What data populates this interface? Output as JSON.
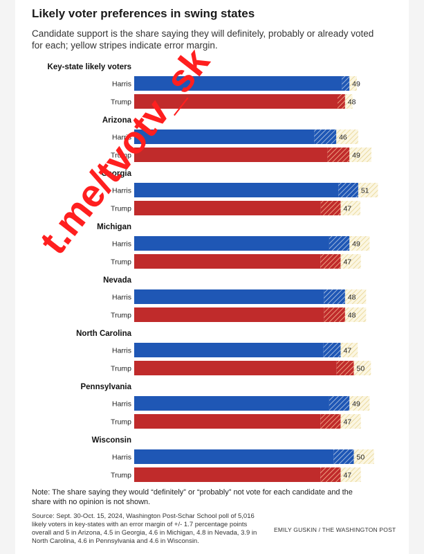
{
  "header": {
    "title": "Likely voter preferences in swing states",
    "subtitle": "Candidate support is the share saying they will definitely, probably or already voted for each; yellow stripes indicate error margin."
  },
  "colors": {
    "harris": "#1f57b5",
    "trump": "#c02b2b",
    "harris_stripe": "#7f9fcc",
    "trump_stripe": "#e07f6a",
    "margin": "#f0e3b0"
  },
  "chart_data": {
    "type": "bar",
    "orientation": "horizontal",
    "xlim": [
      0,
      60
    ],
    "groups": [
      {
        "label": "Key-state likely voters",
        "margin": 1.7,
        "bars": [
          {
            "name": "Harris",
            "value": 49
          },
          {
            "name": "Trump",
            "value": 48
          }
        ]
      },
      {
        "label": "Arizona",
        "margin": 5,
        "bars": [
          {
            "name": "Harris",
            "value": 46
          },
          {
            "name": "Trump",
            "value": 49
          }
        ]
      },
      {
        "label": "Georgia",
        "margin": 4.5,
        "bars": [
          {
            "name": "Harris",
            "value": 51
          },
          {
            "name": "Trump",
            "value": 47
          }
        ]
      },
      {
        "label": "Michigan",
        "margin": 4.6,
        "bars": [
          {
            "name": "Harris",
            "value": 49
          },
          {
            "name": "Trump",
            "value": 47
          }
        ]
      },
      {
        "label": "Nevada",
        "margin": 4.8,
        "bars": [
          {
            "name": "Harris",
            "value": 48
          },
          {
            "name": "Trump",
            "value": 48
          }
        ]
      },
      {
        "label": "North Carolina",
        "margin": 3.9,
        "bars": [
          {
            "name": "Harris",
            "value": 47
          },
          {
            "name": "Trump",
            "value": 50
          }
        ]
      },
      {
        "label": "Pennsylvania",
        "margin": 4.6,
        "bars": [
          {
            "name": "Harris",
            "value": 49
          },
          {
            "name": "Trump",
            "value": 47
          }
        ]
      },
      {
        "label": "Wisconsin",
        "margin": 4.6,
        "bars": [
          {
            "name": "Harris",
            "value": 50
          },
          {
            "name": "Trump",
            "value": 47
          }
        ]
      }
    ]
  },
  "footer": {
    "note": "Note: The share saying they would “definitely” or “probably” not vote for each candidate and the share with no opinion is not shown.",
    "source": "Source: Sept. 30-Oct. 15, 2024, Washington Post-Schar School poll of 5,016 likely voters in key-states with an error margin of +/- 1.7 percentage points overall and 5 in Arizona, 4.5 in Georgia, 4.6 in Michigan, 4.8 in Nevada, 3.9 in North Carolina, 4.6 in Pennsylvania and 4.6 in Wisconsin.",
    "credit": "EMILY GUSKIN / THE WASHINGTON POST"
  },
  "watermark": {
    "text": "t.me/tvotv_sk",
    "color": "#ff1f1f"
  }
}
